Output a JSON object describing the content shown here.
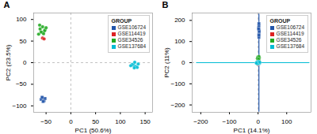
{
  "chart_data": [
    {
      "type": "scatter",
      "title": "A",
      "x_label": "PC1 (50.6%)",
      "y_label": "PC2 (23.5%)",
      "xlim": [
        -75,
        165
      ],
      "ylim": [
        -115,
        115
      ],
      "xticks": [
        -50,
        0,
        50,
        100,
        150
      ],
      "yticks": [
        -100,
        -50,
        0,
        50,
        100
      ],
      "vlines": [
        0
      ],
      "hlines": [
        0
      ],
      "legend": "upper right",
      "legend_title": "GROUP",
      "series": [
        {
          "name": "GSE106724",
          "color": "#2255aa",
          "marker": "square",
          "x": [
            -57,
            -60,
            -54,
            -52,
            -58,
            -56
          ],
          "y": [
            -82,
            -85,
            -88,
            -83,
            -80,
            -90
          ]
        },
        {
          "name": "GSE114419",
          "color": "#dd2222",
          "marker": "circle",
          "x": [
            -57,
            -54
          ],
          "y": [
            57,
            55
          ]
        },
        {
          "name": "GSE34526",
          "color": "#22aa22",
          "marker": "circle",
          "x": [
            -62,
            -57,
            -52,
            -58,
            -53,
            -60,
            -65,
            -50,
            -55,
            -63
          ],
          "y": [
            78,
            83,
            76,
            70,
            74,
            71,
            66,
            81,
            67,
            87
          ]
        },
        {
          "name": "GSE137684",
          "color": "#00bcd4",
          "marker": "circle",
          "x": [
            127,
            131,
            124,
            134,
            129,
            121,
            136,
            128
          ],
          "y": [
            -6,
            -9,
            -4,
            -11,
            1,
            -7,
            -3,
            -12
          ]
        }
      ]
    },
    {
      "type": "scatter",
      "title": "B",
      "x_label": "PC1 (14.1%)",
      "y_label": "PC2 (11%)",
      "xlim": [
        -230,
        185
      ],
      "ylim": [
        -235,
        235
      ],
      "xticks": [
        -200,
        -100,
        0,
        100
      ],
      "yticks": [
        -200,
        -100,
        0,
        100,
        200
      ],
      "vlines": [
        0
      ],
      "hlines": [
        0
      ],
      "legend": "upper right",
      "legend_title": "GROUP",
      "series": [
        {
          "name": "GSE106724",
          "color": "#2255aa",
          "marker": "square",
          "line_x": [
            3,
            3
          ],
          "line_y": [
            -230,
            230
          ],
          "x": [
            3,
            3,
            4,
            2,
            3,
            3,
            4,
            2,
            3,
            3
          ],
          "y": [
            155,
            135,
            145,
            165,
            175,
            185,
            150,
            160,
            120,
            130
          ]
        },
        {
          "name": "GSE114419",
          "color": "#dd2222",
          "marker": "circle",
          "x": [
            0,
            2,
            -2,
            3,
            0,
            -3
          ],
          "y": [
            5,
            10,
            -5,
            8,
            -8,
            3
          ]
        },
        {
          "name": "GSE34526",
          "color": "#22aa22",
          "marker": "circle",
          "x": [
            1,
            3,
            -1,
            2,
            4,
            0,
            3,
            1,
            -2,
            2
          ],
          "y": [
            22,
            16,
            26,
            19,
            23,
            13,
            29,
            11,
            20,
            17
          ]
        },
        {
          "name": "GSE137684",
          "color": "#00bcd4",
          "marker": "circle",
          "line_x": [
            -215,
            178
          ],
          "line_y": [
            0,
            0
          ],
          "x": [
            -5,
            0,
            5,
            -3,
            3,
            0,
            2,
            -2,
            6,
            -6
          ],
          "y": [
            0,
            4,
            -4,
            3,
            -3,
            -6,
            5,
            -5,
            2,
            -2
          ]
        }
      ]
    }
  ]
}
